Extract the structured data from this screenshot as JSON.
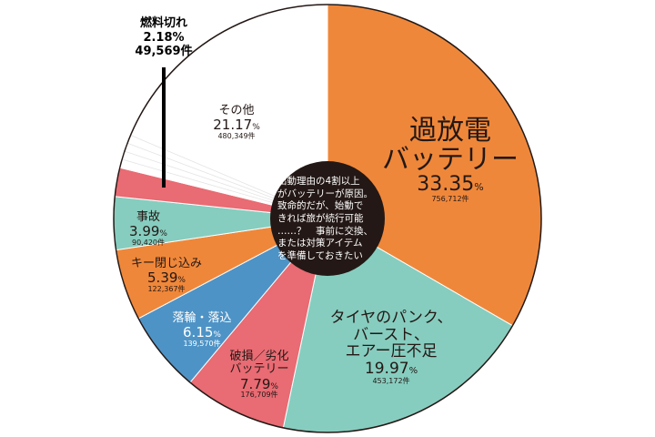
{
  "chart_data": {
    "type": "pie",
    "start": "top",
    "direction": "clockwise",
    "slices": [
      {
        "name": "過放電\nバッテリー",
        "percent": 33.35,
        "count": "756,712件",
        "color": "#EF873A"
      },
      {
        "name": "タイヤのパンク、\nバースト、\nエアー圧不足",
        "percent": 19.97,
        "count": "453,172件",
        "color": "#86CDBF"
      },
      {
        "name": "破損／劣化\nバッテリー",
        "percent": 7.79,
        "count": "176,709件",
        "color": "#E96B73"
      },
      {
        "name": "落輪・落込",
        "percent": 6.15,
        "count": "139,570件",
        "color": "#4E93C6"
      },
      {
        "name": "キー閉じ込み",
        "percent": 5.39,
        "count": "122,367件",
        "color": "#EF873A"
      },
      {
        "name": "事故",
        "percent": 3.99,
        "count": "90,420件",
        "color": "#86CDBF"
      },
      {
        "name": "燃料切れ",
        "percent": 2.18,
        "count": "49,569件",
        "color": "#E96B73"
      },
      {
        "name": "その他",
        "percent": 21.17,
        "count": "480,349件",
        "color": "#FFFFFF"
      }
    ],
    "center_note": "出動理由の4割以上\nがバッテリーが原因。\n致命的だが、始動で\nきれば旅が続行可能\n……？　事前に交換、\nまたは対策アイテム\nを準備しておきたい",
    "center_color": "#231815"
  }
}
